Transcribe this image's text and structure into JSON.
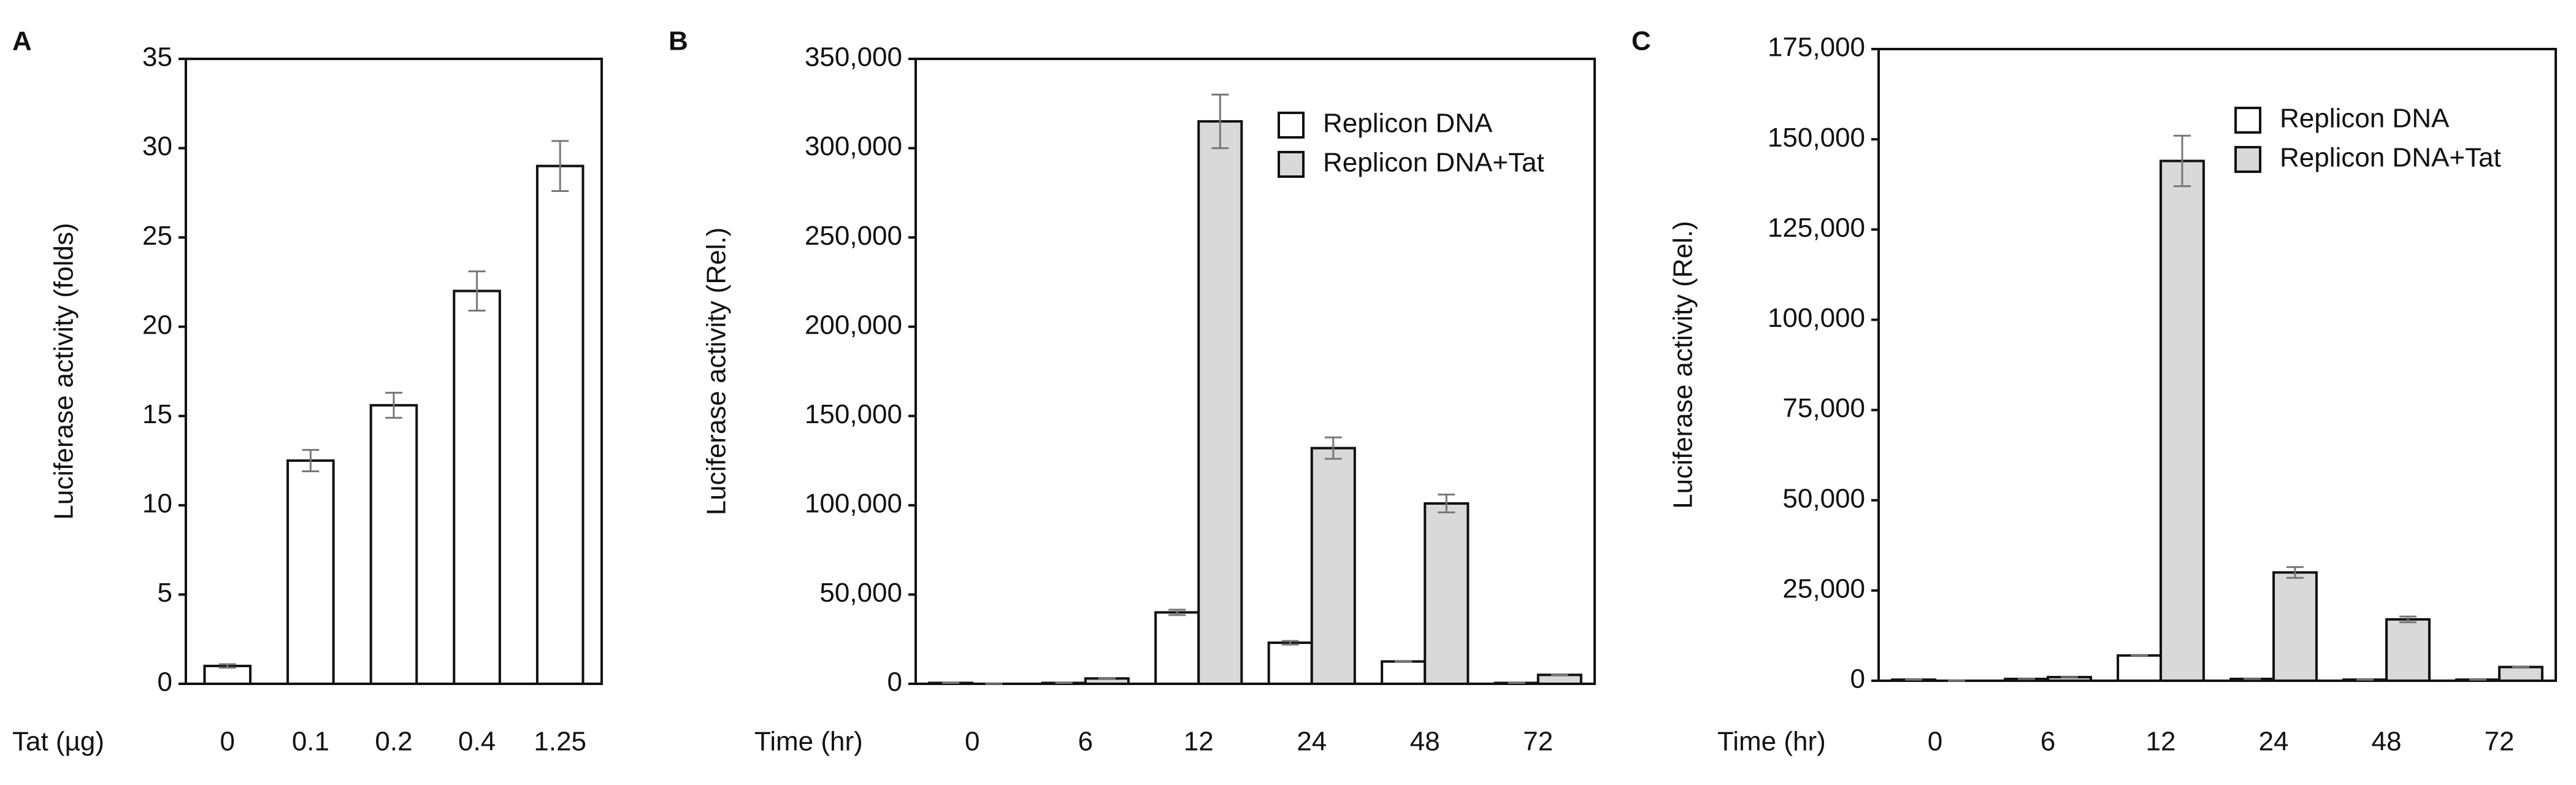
{
  "chart_data": [
    {
      "type": "bar",
      "panel": "A",
      "ylabel": "Luciferase activity (folds)",
      "xlabel": "Tat (µg)",
      "categories": [
        "0",
        "0.1",
        "0.2",
        "0.4",
        "1.25"
      ],
      "values": [
        1,
        12.5,
        15.6,
        22,
        29
      ],
      "errors": [
        0.1,
        0.6,
        0.7,
        1.1,
        1.4
      ],
      "color": "#ffffff",
      "ylim": [
        0,
        35
      ],
      "yticks": [
        0,
        5,
        10,
        15,
        20,
        25,
        30,
        35
      ]
    },
    {
      "type": "bar",
      "panel": "B",
      "ylabel": "Luciferase activity (Rel.)",
      "xlabel": "Time (hr)",
      "categories": [
        "0",
        "6",
        "12",
        "24",
        "48",
        "72"
      ],
      "series": [
        {
          "name": "Replicon DNA",
          "color": "#ffffff",
          "values": [
            500,
            500,
            40000,
            23000,
            12500,
            500
          ],
          "errors": [
            0,
            0,
            1500,
            1000,
            0,
            0
          ]
        },
        {
          "name": "Replicon DNA+Tat",
          "color": "#d9d9d9",
          "values": [
            0,
            3000,
            315000,
            132000,
            101000,
            5000
          ],
          "errors": [
            0,
            0,
            15000,
            6000,
            5000,
            0
          ]
        }
      ],
      "ylim": [
        0,
        350000
      ],
      "yticks": [
        0,
        {
          "value": 50000,
          "label": "50,000"
        },
        {
          "value": 100000,
          "label": "100,000"
        },
        {
          "value": 150000,
          "label": "150,000"
        },
        {
          "value": 200000,
          "label": "200,000"
        },
        {
          "value": 250000,
          "label": "250,000"
        },
        {
          "value": 300000,
          "label": "300,000"
        },
        {
          "value": 350000,
          "label": "350,000"
        }
      ]
    },
    {
      "type": "bar",
      "panel": "C",
      "ylabel": "Luciferase activity (Rel.)",
      "xlabel": "Time (hr)",
      "categories": [
        "0",
        "6",
        "12",
        "24",
        "48",
        "72"
      ],
      "series": [
        {
          "name": "Replicon DNA",
          "color": "#ffffff",
          "values": [
            300,
            500,
            7000,
            500,
            300,
            300
          ],
          "errors": [
            0,
            0,
            0,
            0,
            0,
            0
          ]
        },
        {
          "name": "Replicon DNA+Tat",
          "color": "#d9d9d9",
          "values": [
            0,
            1000,
            144000,
            30000,
            17000,
            3800
          ],
          "errors": [
            0,
            0,
            7000,
            1500,
            800,
            0
          ]
        }
      ],
      "ylim": [
        0,
        175000
      ],
      "yticks": [
        0,
        {
          "value": 25000,
          "label": "25,000"
        },
        {
          "value": 50000,
          "label": "50,000"
        },
        {
          "value": 75000,
          "label": "75,000"
        },
        {
          "value": 100000,
          "label": "100,000"
        },
        {
          "value": 125000,
          "label": "125,000"
        },
        {
          "value": 150000,
          "label": "150,000"
        },
        {
          "value": 175000,
          "label": "175,000"
        }
      ]
    }
  ]
}
